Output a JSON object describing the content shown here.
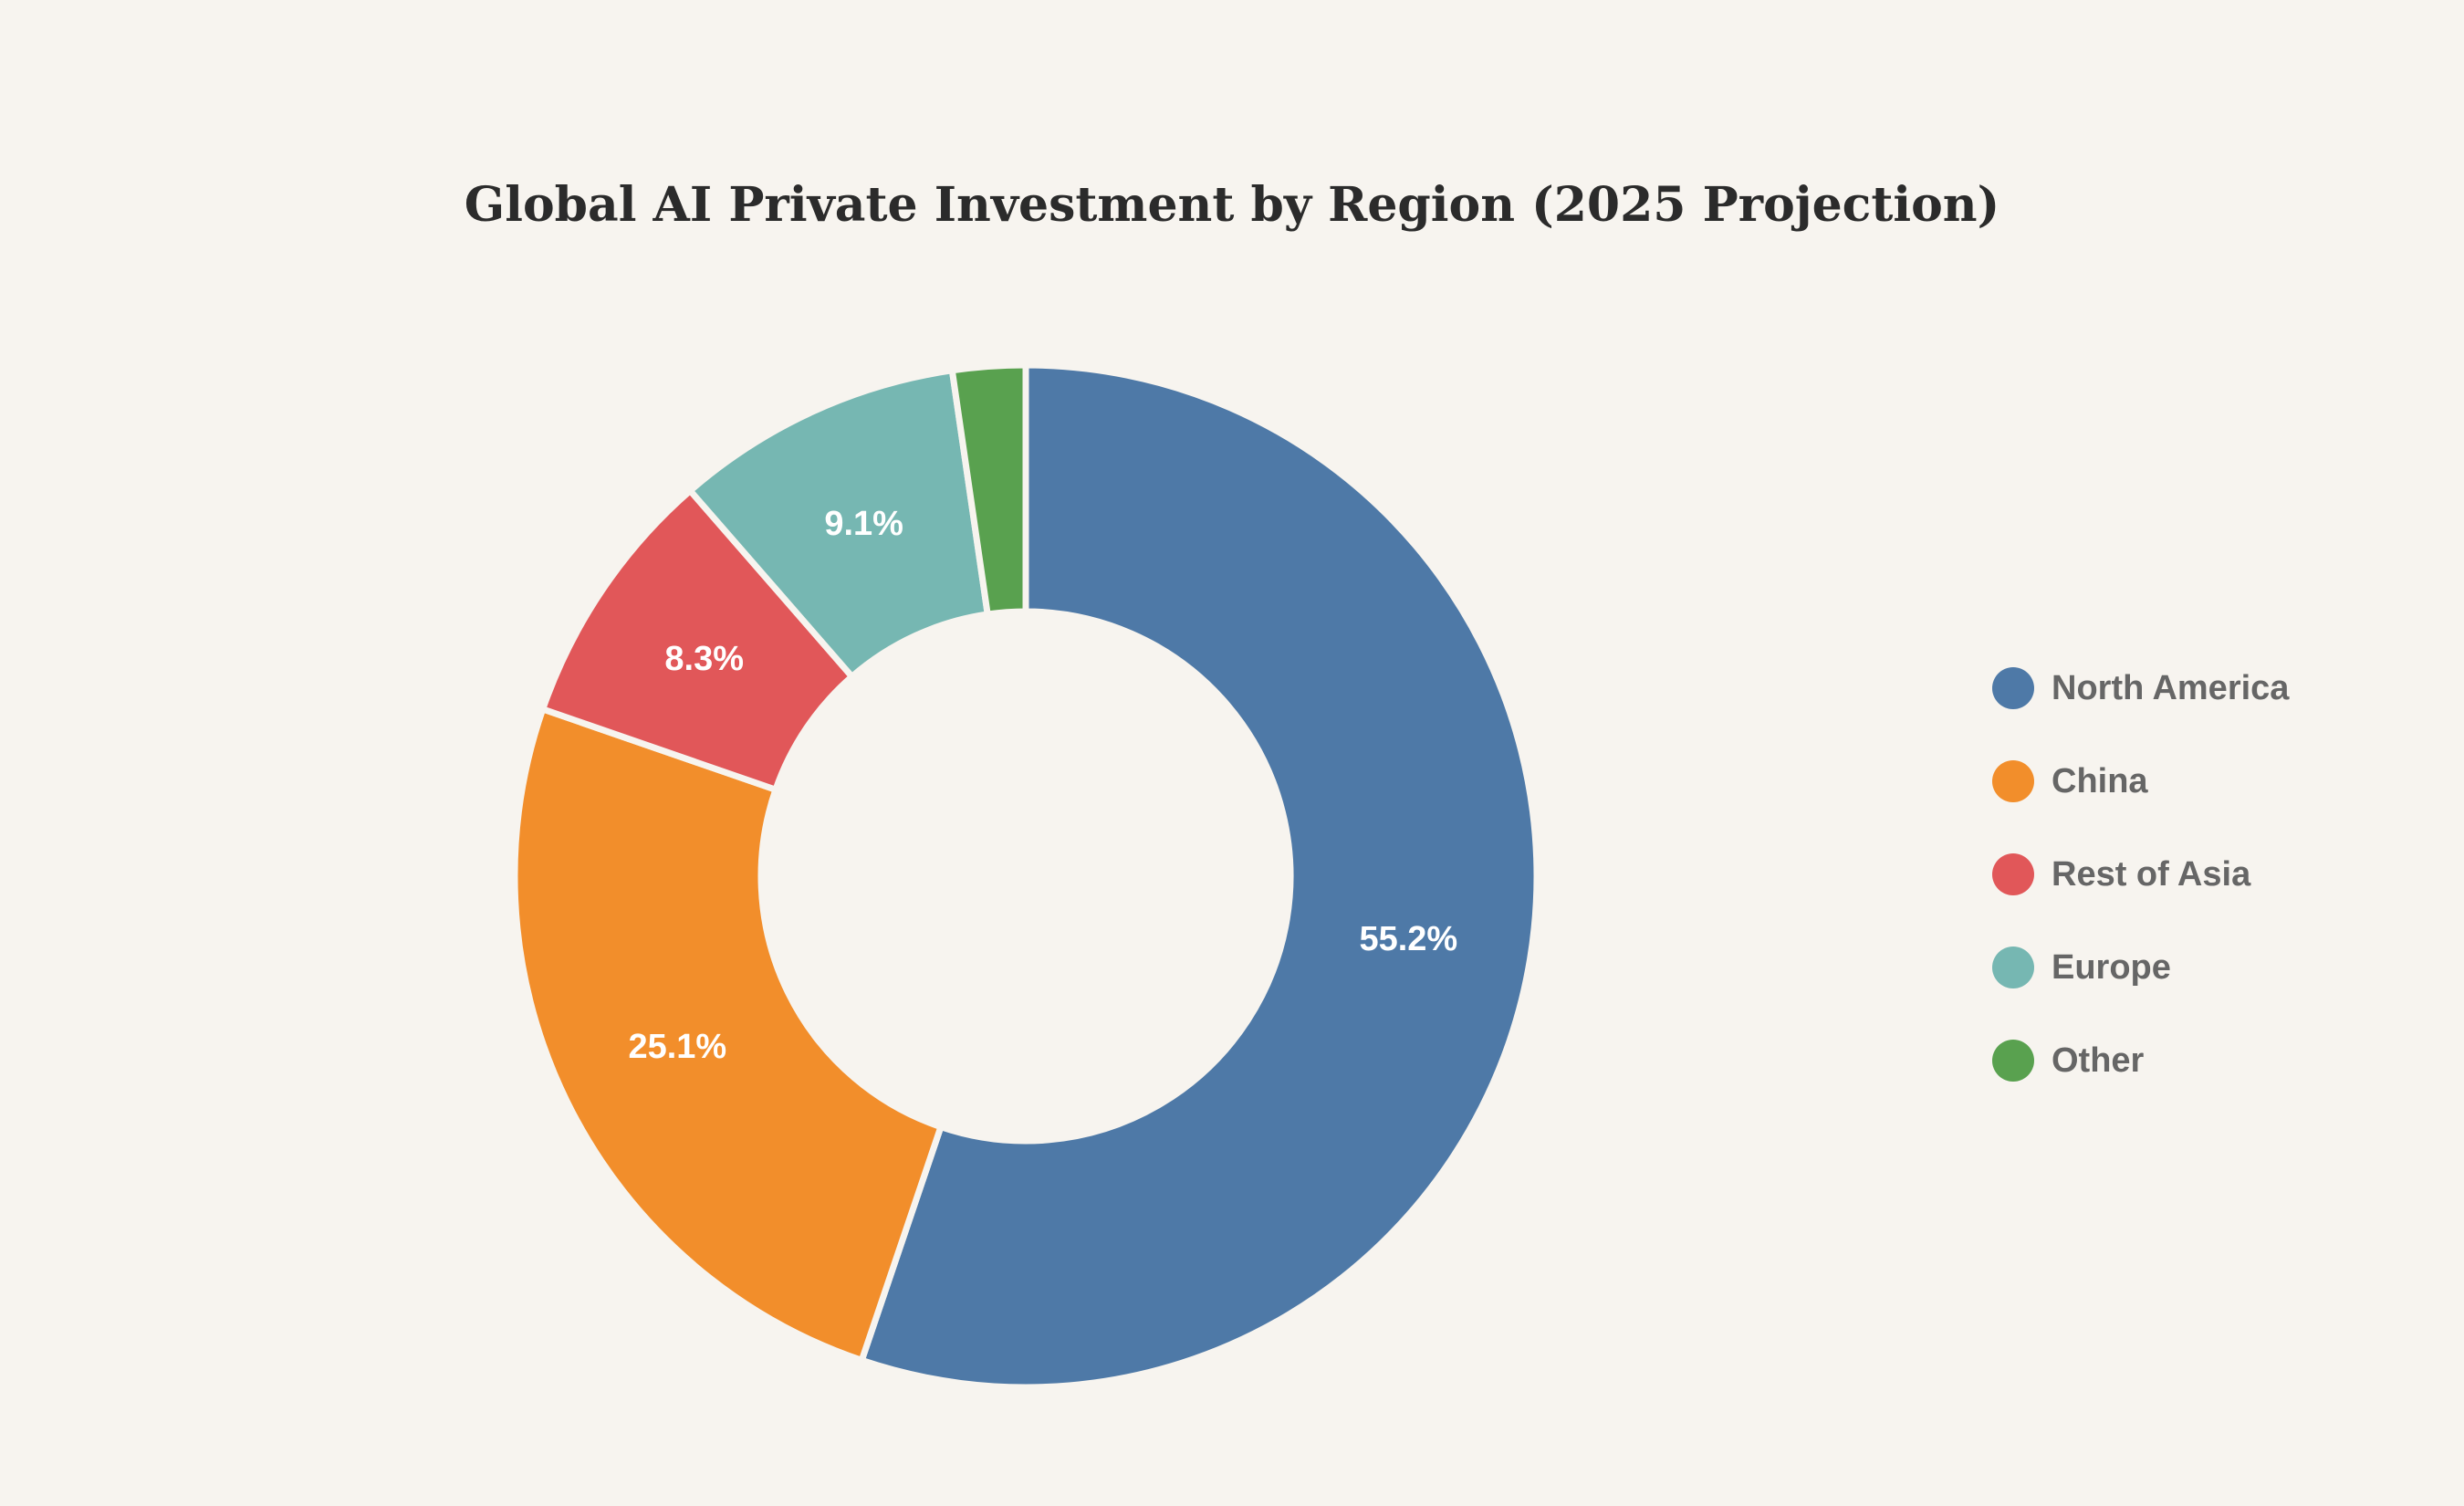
{
  "chart_data": {
    "type": "pie",
    "variant": "donut",
    "title": "Global AI Private Investment by Region (2025 Projection)",
    "categories": [
      "North America",
      "China",
      "Rest of Asia",
      "Europe",
      "Other"
    ],
    "values": [
      55.2,
      25.1,
      8.3,
      9.1,
      2.3
    ],
    "slice_labels": [
      "55.2%",
      "25.1%",
      "8.3%",
      "9.1%",
      ""
    ],
    "colors": [
      "#4e79a7",
      "#f28e2b",
      "#e15759",
      "#76b7b2",
      "#59a14f"
    ],
    "legend_position": "right"
  }
}
